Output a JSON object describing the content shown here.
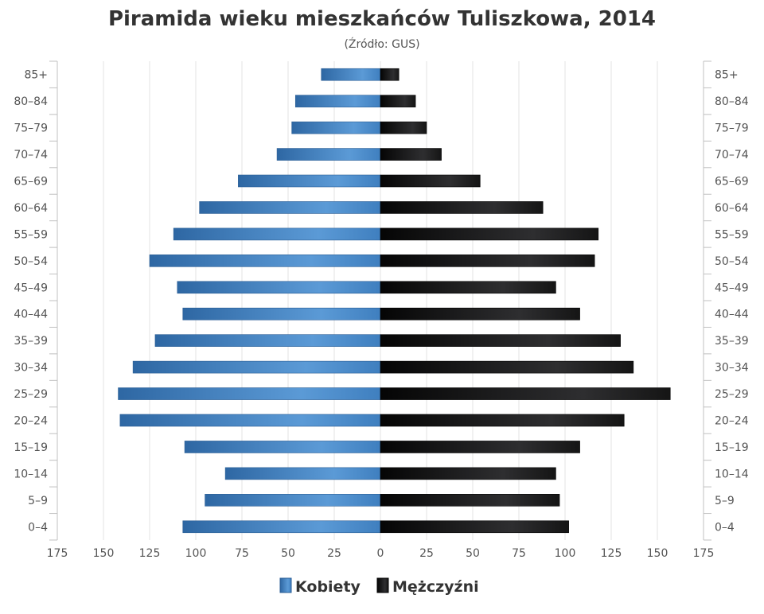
{
  "chart_data": {
    "type": "bar",
    "orientation": "horizontal-pyramid",
    "title": "Piramida wieku mieszkańców Tuliszkowa, 2014",
    "subtitle": "(Źródło: GUS)",
    "categories": [
      "85+",
      "80-84",
      "75-79",
      "70-74",
      "65-69",
      "60-64",
      "55-59",
      "50-54",
      "45-49",
      "40-44",
      "35-39",
      "30-34",
      "25-29",
      "20-24",
      "15-19",
      "10-14",
      "5-9",
      "0-4"
    ],
    "series": [
      {
        "name": "Kobiety",
        "side": "left",
        "color": "#3d7fc1",
        "values": [
          32,
          46,
          48,
          56,
          77,
          98,
          112,
          125,
          110,
          107,
          122,
          134,
          142,
          141,
          106,
          84,
          95,
          107
        ]
      },
      {
        "name": "Mężczyźni",
        "side": "right",
        "color": "#1a1a1a",
        "values": [
          10,
          19,
          25,
          33,
          54,
          88,
          118,
          116,
          95,
          108,
          130,
          137,
          157,
          132,
          108,
          95,
          97,
          102
        ]
      }
    ],
    "xticks": [
      "175",
      "150",
      "125",
      "100",
      "75",
      "50",
      "25",
      "0",
      "25",
      "50",
      "75",
      "100",
      "125",
      "150",
      "175"
    ],
    "xlim": [
      -175,
      175
    ],
    "grid": true,
    "legend": "bottom-center"
  }
}
